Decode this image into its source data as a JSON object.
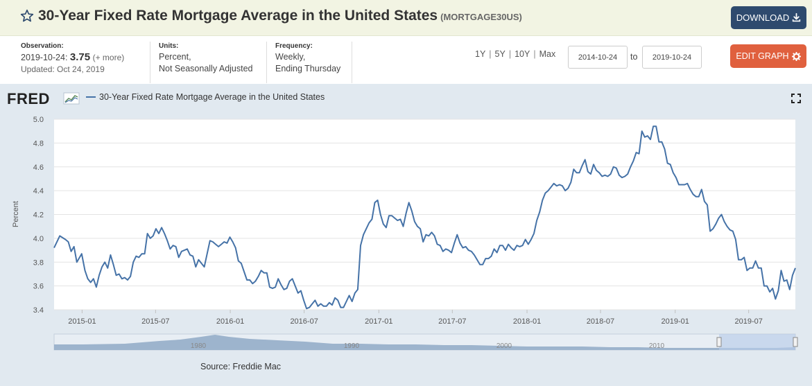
{
  "header": {
    "title": "30-Year Fixed Rate Mortgage Average in the United States",
    "series_id": "(MORTGAGE30US)",
    "download_label": "DOWNLOAD",
    "star_icon": "star-outline-icon",
    "download_icon": "download-icon"
  },
  "meta": {
    "observation_label": "Observation:",
    "observation_date": "2019-10-24:",
    "observation_value": "3.75",
    "observation_more": "(+ more)",
    "updated": "Updated: Oct 24, 2019",
    "units_label": "Units:",
    "units_line1": "Percent,",
    "units_line2": "Not Seasonally Adjusted",
    "frequency_label": "Frequency:",
    "frequency_line1": "Weekly,",
    "frequency_line2": "Ending Thursday"
  },
  "controls": {
    "ranges": [
      "1Y",
      "5Y",
      "10Y",
      "Max"
    ],
    "date_from": "2014-10-24",
    "to_label": "to",
    "date_to": "2019-10-24",
    "edit_label": "EDIT GRAPH",
    "edit_icon": "gear-icon"
  },
  "chart": {
    "logo_text": "FRED",
    "legend_label": "30-Year Fixed Rate Mortgage Average in the United States",
    "source": "Source: Freddie Mac",
    "colors": {
      "line": "#4572a7",
      "background": "#e1e9f0",
      "plot": "#ffffff",
      "accent": "#e0603e",
      "brand": "#2e4a6e"
    }
  },
  "chart_data": {
    "type": "line",
    "ylabel": "Percent",
    "ylim": [
      3.4,
      5.0
    ],
    "yticks": [
      "3.4",
      "3.6",
      "3.8",
      "4.0",
      "4.2",
      "4.4",
      "4.6",
      "4.8",
      "5.0"
    ],
    "xticks": [
      "2015-01",
      "2015-07",
      "2016-01",
      "2016-07",
      "2017-01",
      "2017-07",
      "2018-01",
      "2018-07",
      "2019-01",
      "2019-07"
    ],
    "xrange": [
      "2014-10-24",
      "2019-10-24"
    ],
    "grid": true,
    "series": [
      {
        "name": "30-Year Fixed Rate Mortgage Average in the United States",
        "points": [
          [
            "2014-10-24",
            3.92
          ],
          [
            "2014-11-07",
            4.02
          ],
          [
            "2014-11-21",
            3.99
          ],
          [
            "2014-11-28",
            3.97
          ],
          [
            "2014-12-05",
            3.89
          ],
          [
            "2014-12-12",
            3.93
          ],
          [
            "2014-12-19",
            3.8
          ],
          [
            "2014-12-31",
            3.87
          ],
          [
            "2015-01-08",
            3.73
          ],
          [
            "2015-01-15",
            3.66
          ],
          [
            "2015-01-22",
            3.63
          ],
          [
            "2015-01-29",
            3.66
          ],
          [
            "2015-02-05",
            3.59
          ],
          [
            "2015-02-12",
            3.69
          ],
          [
            "2015-02-19",
            3.76
          ],
          [
            "2015-02-26",
            3.8
          ],
          [
            "2015-03-05",
            3.75
          ],
          [
            "2015-03-12",
            3.86
          ],
          [
            "2015-03-19",
            3.78
          ],
          [
            "2015-03-26",
            3.69
          ],
          [
            "2015-04-02",
            3.7
          ],
          [
            "2015-04-09",
            3.66
          ],
          [
            "2015-04-16",
            3.67
          ],
          [
            "2015-04-23",
            3.65
          ],
          [
            "2015-04-30",
            3.68
          ],
          [
            "2015-05-07",
            3.8
          ],
          [
            "2015-05-14",
            3.85
          ],
          [
            "2015-05-21",
            3.84
          ],
          [
            "2015-05-28",
            3.87
          ],
          [
            "2015-06-04",
            3.87
          ],
          [
            "2015-06-11",
            4.04
          ],
          [
            "2015-06-18",
            4.0
          ],
          [
            "2015-06-25",
            4.02
          ],
          [
            "2015-07-02",
            4.08
          ],
          [
            "2015-07-09",
            4.04
          ],
          [
            "2015-07-16",
            4.09
          ],
          [
            "2015-07-23",
            4.04
          ],
          [
            "2015-07-30",
            3.98
          ],
          [
            "2015-08-06",
            3.91
          ],
          [
            "2015-08-13",
            3.94
          ],
          [
            "2015-08-20",
            3.93
          ],
          [
            "2015-08-27",
            3.84
          ],
          [
            "2015-09-03",
            3.89
          ],
          [
            "2015-09-10",
            3.9
          ],
          [
            "2015-09-17",
            3.91
          ],
          [
            "2015-09-24",
            3.86
          ],
          [
            "2015-10-01",
            3.85
          ],
          [
            "2015-10-08",
            3.76
          ],
          [
            "2015-10-15",
            3.82
          ],
          [
            "2015-10-22",
            3.79
          ],
          [
            "2015-10-29",
            3.76
          ],
          [
            "2015-11-05",
            3.87
          ],
          [
            "2015-11-12",
            3.98
          ],
          [
            "2015-11-19",
            3.97
          ],
          [
            "2015-11-26",
            3.95
          ],
          [
            "2015-12-03",
            3.93
          ],
          [
            "2015-12-10",
            3.95
          ],
          [
            "2015-12-17",
            3.97
          ],
          [
            "2015-12-24",
            3.96
          ],
          [
            "2015-12-31",
            4.01
          ],
          [
            "2016-01-07",
            3.97
          ],
          [
            "2016-01-14",
            3.92
          ],
          [
            "2016-01-21",
            3.81
          ],
          [
            "2016-01-28",
            3.79
          ],
          [
            "2016-02-04",
            3.72
          ],
          [
            "2016-02-11",
            3.65
          ],
          [
            "2016-02-18",
            3.65
          ],
          [
            "2016-02-25",
            3.62
          ],
          [
            "2016-03-03",
            3.64
          ],
          [
            "2016-03-10",
            3.68
          ],
          [
            "2016-03-17",
            3.73
          ],
          [
            "2016-03-24",
            3.71
          ],
          [
            "2016-03-31",
            3.71
          ],
          [
            "2016-04-07",
            3.59
          ],
          [
            "2016-04-14",
            3.58
          ],
          [
            "2016-04-21",
            3.59
          ],
          [
            "2016-04-28",
            3.66
          ],
          [
            "2016-05-05",
            3.61
          ],
          [
            "2016-05-12",
            3.57
          ],
          [
            "2016-05-19",
            3.58
          ],
          [
            "2016-05-26",
            3.64
          ],
          [
            "2016-06-02",
            3.66
          ],
          [
            "2016-06-09",
            3.6
          ],
          [
            "2016-06-16",
            3.54
          ],
          [
            "2016-06-23",
            3.56
          ],
          [
            "2016-06-30",
            3.48
          ],
          [
            "2016-07-07",
            3.41
          ],
          [
            "2016-07-14",
            3.42
          ],
          [
            "2016-07-21",
            3.45
          ],
          [
            "2016-07-28",
            3.48
          ],
          [
            "2016-08-04",
            3.43
          ],
          [
            "2016-08-11",
            3.45
          ],
          [
            "2016-08-18",
            3.43
          ],
          [
            "2016-08-25",
            3.43
          ],
          [
            "2016-09-01",
            3.46
          ],
          [
            "2016-09-08",
            3.44
          ],
          [
            "2016-09-15",
            3.5
          ],
          [
            "2016-09-22",
            3.48
          ],
          [
            "2016-09-29",
            3.42
          ],
          [
            "2016-10-06",
            3.42
          ],
          [
            "2016-10-13",
            3.47
          ],
          [
            "2016-10-20",
            3.52
          ],
          [
            "2016-10-27",
            3.47
          ],
          [
            "2016-11-03",
            3.54
          ],
          [
            "2016-11-10",
            3.57
          ],
          [
            "2016-11-17",
            3.94
          ],
          [
            "2016-11-24",
            4.03
          ],
          [
            "2016-12-01",
            4.08
          ],
          [
            "2016-12-08",
            4.13
          ],
          [
            "2016-12-15",
            4.16
          ],
          [
            "2016-12-22",
            4.3
          ],
          [
            "2016-12-29",
            4.32
          ],
          [
            "2017-01-05",
            4.2
          ],
          [
            "2017-01-12",
            4.12
          ],
          [
            "2017-01-19",
            4.09
          ],
          [
            "2017-01-26",
            4.19
          ],
          [
            "2017-02-02",
            4.19
          ],
          [
            "2017-02-09",
            4.17
          ],
          [
            "2017-02-16",
            4.15
          ],
          [
            "2017-02-23",
            4.16
          ],
          [
            "2017-03-02",
            4.1
          ],
          [
            "2017-03-09",
            4.21
          ],
          [
            "2017-03-16",
            4.3
          ],
          [
            "2017-03-23",
            4.23
          ],
          [
            "2017-03-30",
            4.14
          ],
          [
            "2017-04-06",
            4.1
          ],
          [
            "2017-04-13",
            4.08
          ],
          [
            "2017-04-20",
            3.97
          ],
          [
            "2017-04-27",
            4.03
          ],
          [
            "2017-05-04",
            4.02
          ],
          [
            "2017-05-11",
            4.05
          ],
          [
            "2017-05-18",
            4.02
          ],
          [
            "2017-05-25",
            3.95
          ],
          [
            "2017-06-01",
            3.94
          ],
          [
            "2017-06-08",
            3.89
          ],
          [
            "2017-06-15",
            3.91
          ],
          [
            "2017-06-22",
            3.9
          ],
          [
            "2017-06-29",
            3.88
          ],
          [
            "2017-07-06",
            3.96
          ],
          [
            "2017-07-13",
            4.03
          ],
          [
            "2017-07-20",
            3.96
          ],
          [
            "2017-07-27",
            3.92
          ],
          [
            "2017-08-03",
            3.93
          ],
          [
            "2017-08-10",
            3.9
          ],
          [
            "2017-08-17",
            3.89
          ],
          [
            "2017-08-24",
            3.86
          ],
          [
            "2017-08-31",
            3.82
          ],
          [
            "2017-09-07",
            3.78
          ],
          [
            "2017-09-14",
            3.78
          ],
          [
            "2017-09-21",
            3.83
          ],
          [
            "2017-09-28",
            3.83
          ],
          [
            "2017-10-05",
            3.85
          ],
          [
            "2017-10-12",
            3.91
          ],
          [
            "2017-10-19",
            3.88
          ],
          [
            "2017-10-26",
            3.94
          ],
          [
            "2017-11-02",
            3.94
          ],
          [
            "2017-11-09",
            3.9
          ],
          [
            "2017-11-16",
            3.95
          ],
          [
            "2017-11-23",
            3.92
          ],
          [
            "2017-11-30",
            3.9
          ],
          [
            "2017-12-07",
            3.94
          ],
          [
            "2017-12-14",
            3.93
          ],
          [
            "2017-12-21",
            3.94
          ],
          [
            "2017-12-28",
            3.99
          ],
          [
            "2018-01-04",
            3.95
          ],
          [
            "2018-01-11",
            3.99
          ],
          [
            "2018-01-18",
            4.04
          ],
          [
            "2018-01-25",
            4.15
          ],
          [
            "2018-02-01",
            4.22
          ],
          [
            "2018-02-08",
            4.32
          ],
          [
            "2018-02-15",
            4.38
          ],
          [
            "2018-02-22",
            4.4
          ],
          [
            "2018-03-01",
            4.43
          ],
          [
            "2018-03-08",
            4.46
          ],
          [
            "2018-03-15",
            4.44
          ],
          [
            "2018-03-22",
            4.45
          ],
          [
            "2018-03-29",
            4.44
          ],
          [
            "2018-04-05",
            4.4
          ],
          [
            "2018-04-12",
            4.42
          ],
          [
            "2018-04-19",
            4.47
          ],
          [
            "2018-04-26",
            4.58
          ],
          [
            "2018-05-03",
            4.55
          ],
          [
            "2018-05-10",
            4.55
          ],
          [
            "2018-05-17",
            4.61
          ],
          [
            "2018-05-24",
            4.66
          ],
          [
            "2018-05-31",
            4.56
          ],
          [
            "2018-06-07",
            4.54
          ],
          [
            "2018-06-14",
            4.62
          ],
          [
            "2018-06-21",
            4.57
          ],
          [
            "2018-06-28",
            4.55
          ],
          [
            "2018-07-05",
            4.52
          ],
          [
            "2018-07-12",
            4.53
          ],
          [
            "2018-07-19",
            4.52
          ],
          [
            "2018-07-26",
            4.54
          ],
          [
            "2018-08-02",
            4.6
          ],
          [
            "2018-08-09",
            4.59
          ],
          [
            "2018-08-16",
            4.53
          ],
          [
            "2018-08-23",
            4.51
          ],
          [
            "2018-08-30",
            4.52
          ],
          [
            "2018-09-06",
            4.54
          ],
          [
            "2018-09-13",
            4.6
          ],
          [
            "2018-09-20",
            4.65
          ],
          [
            "2018-09-27",
            4.72
          ],
          [
            "2018-10-04",
            4.71
          ],
          [
            "2018-10-11",
            4.9
          ],
          [
            "2018-10-18",
            4.85
          ],
          [
            "2018-10-25",
            4.86
          ],
          [
            "2018-11-01",
            4.83
          ],
          [
            "2018-11-08",
            4.94
          ],
          [
            "2018-11-15",
            4.94
          ],
          [
            "2018-11-22",
            4.81
          ],
          [
            "2018-11-29",
            4.81
          ],
          [
            "2018-12-06",
            4.75
          ],
          [
            "2018-12-13",
            4.63
          ],
          [
            "2018-12-20",
            4.62
          ],
          [
            "2018-12-27",
            4.55
          ],
          [
            "2019-01-03",
            4.51
          ],
          [
            "2019-01-10",
            4.45
          ],
          [
            "2019-01-17",
            4.45
          ],
          [
            "2019-01-24",
            4.45
          ],
          [
            "2019-01-31",
            4.46
          ],
          [
            "2019-02-07",
            4.41
          ],
          [
            "2019-02-14",
            4.37
          ],
          [
            "2019-02-21",
            4.35
          ],
          [
            "2019-02-28",
            4.35
          ],
          [
            "2019-03-07",
            4.41
          ],
          [
            "2019-03-14",
            4.31
          ],
          [
            "2019-03-21",
            4.28
          ],
          [
            "2019-03-28",
            4.06
          ],
          [
            "2019-04-04",
            4.08
          ],
          [
            "2019-04-11",
            4.12
          ],
          [
            "2019-04-18",
            4.17
          ],
          [
            "2019-04-25",
            4.2
          ],
          [
            "2019-05-02",
            4.14
          ],
          [
            "2019-05-09",
            4.1
          ],
          [
            "2019-05-16",
            4.07
          ],
          [
            "2019-05-23",
            4.06
          ],
          [
            "2019-05-30",
            3.99
          ],
          [
            "2019-06-06",
            3.82
          ],
          [
            "2019-06-13",
            3.82
          ],
          [
            "2019-06-20",
            3.84
          ],
          [
            "2019-06-27",
            3.73
          ],
          [
            "2019-07-04",
            3.75
          ],
          [
            "2019-07-11",
            3.75
          ],
          [
            "2019-07-18",
            3.81
          ],
          [
            "2019-07-25",
            3.75
          ],
          [
            "2019-08-01",
            3.75
          ],
          [
            "2019-08-08",
            3.6
          ],
          [
            "2019-08-15",
            3.6
          ],
          [
            "2019-08-22",
            3.55
          ],
          [
            "2019-08-29",
            3.58
          ],
          [
            "2019-09-05",
            3.49
          ],
          [
            "2019-09-12",
            3.56
          ],
          [
            "2019-09-19",
            3.73
          ],
          [
            "2019-09-26",
            3.64
          ],
          [
            "2019-10-03",
            3.65
          ],
          [
            "2019-10-10",
            3.57
          ],
          [
            "2019-10-17",
            3.69
          ],
          [
            "2019-10-24",
            3.75
          ]
        ]
      }
    ],
    "navigator": {
      "labels": [
        "1980",
        "1990",
        "2000",
        "2010"
      ]
    }
  }
}
